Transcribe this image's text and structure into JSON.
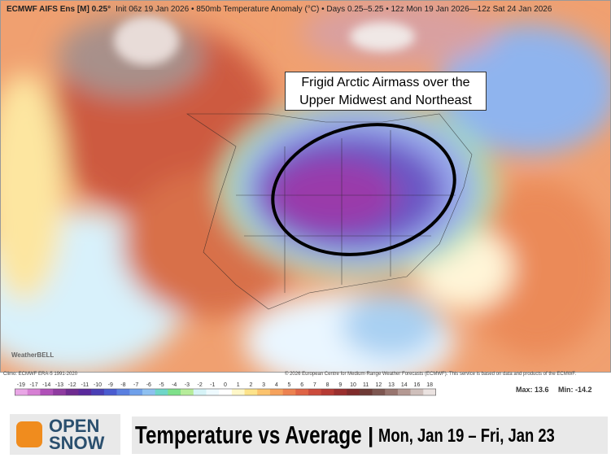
{
  "header": {
    "title": "ECMWF AIFS Ens [M] 0.25°",
    "info": "Init 06z 19 Jan 2026 • 850mb Temperature Anomaly (°C) • Days 0.25–5.25 • 12z Mon 19 Jan 2026—12z Sat 24 Jan 2026"
  },
  "annotation": "Frigid Arctic Airmass over the Upper Midwest and Northeast",
  "watermark": "WeatherBELL",
  "footer": {
    "climo": "Climo: ECMWF ERA-5 1991-2020",
    "copyright": "© 2026 European Centre for Medium-Range Weather Forecasts (ECMWF). This service is based on data and products of the ECMWF.",
    "max": "Max: 13.6",
    "min": "Min: -14.2"
  },
  "colorbar": {
    "labels": [
      "-19",
      "-17",
      "-14",
      "-13",
      "-12",
      "-11",
      "-10",
      "-9",
      "-8",
      "-7",
      "-6",
      "-5",
      "-4",
      "-3",
      "-2",
      "-1",
      "0",
      "1",
      "2",
      "3",
      "4",
      "5",
      "6",
      "7",
      "8",
      "9",
      "10",
      "11",
      "12",
      "13",
      "14",
      "16",
      "18"
    ],
    "colors": [
      "#e9a6e6",
      "#d67fd3",
      "#b050b8",
      "#8f3ba0",
      "#6f2b90",
      "#5a2a9c",
      "#4a3fb5",
      "#4a5cd0",
      "#5a7fe0",
      "#6fa0ea",
      "#8ec0f0",
      "#6fd6c8",
      "#7ee08a",
      "#b6ec9a",
      "#d6f3f7",
      "#eefaff",
      "#ffffff",
      "#fff7c8",
      "#fde38a",
      "#fbc36e",
      "#f5a25c",
      "#ec8250",
      "#df6446",
      "#cb4b3c",
      "#b53a34",
      "#9a2f2e",
      "#7f2b2b",
      "#6e3a36",
      "#7d5650",
      "#98756f",
      "#b49993",
      "#cfbfbb",
      "#ebe3e1"
    ]
  },
  "banner": {
    "brand": [
      "OPEN",
      "SNOW"
    ],
    "title": "Temperature vs Average",
    "separator": "|",
    "dates": "Mon, Jan 19 – Fri, Jan 23"
  }
}
